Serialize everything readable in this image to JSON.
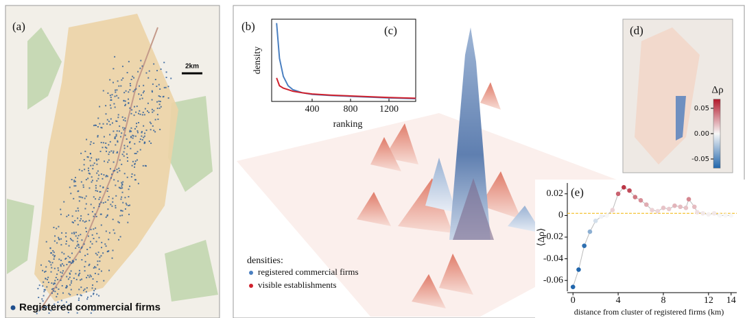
{
  "panel_a": {
    "label": "(a)",
    "scale_label": "2km",
    "legend": "Registered commercial firms"
  },
  "panel_b": {
    "label": "(b)",
    "legend_title": "densities:"
  },
  "panel_d": {
    "label": "(d)"
  },
  "chart_data": [
    {
      "type": "line",
      "label": "(c)",
      "xlabel": "ranking",
      "ylabel": "density",
      "x": [
        30,
        60,
        100,
        150,
        200,
        300,
        400,
        600,
        800,
        1000,
        1200,
        1480
      ],
      "series": [
        {
          "name": "registered commercial firms",
          "color": "#4a7fc0",
          "values": [
            1.0,
            0.55,
            0.32,
            0.2,
            0.15,
            0.11,
            0.09,
            0.075,
            0.065,
            0.055,
            0.045,
            0.035
          ]
        },
        {
          "name": "visible establishments",
          "color": "#d0212d",
          "values": [
            0.3,
            0.2,
            0.17,
            0.15,
            0.13,
            0.11,
            0.095,
            0.08,
            0.07,
            0.06,
            0.05,
            0.04
          ]
        }
      ],
      "xlim": [
        0,
        1475
      ],
      "ylim": [
        0,
        1.05
      ],
      "xticks": [
        400,
        800,
        1200
      ]
    },
    {
      "type": "colorbar",
      "title": "Δρ",
      "colormap": [
        "#2166ac",
        "#f7f7f7",
        "#b2182b"
      ],
      "ylim": [
        -0.068,
        0.068
      ],
      "yticks": [
        0.05,
        {
          "value": 0,
          "label": "0.00"
        },
        -0.05
      ]
    },
    {
      "type": "scatter",
      "label": "(e)",
      "xlabel": "distance from cluster of registered firms (km)",
      "ylabel": "⟨Δρ⟩",
      "x": [
        0,
        0.5,
        1,
        1.5,
        2,
        2.5,
        3,
        3.5,
        4,
        4.5,
        5,
        5.5,
        6,
        6.5,
        7,
        7.5,
        8,
        8.5,
        9,
        9.5,
        10,
        10.25,
        10.75,
        11,
        11.5,
        12,
        12.5,
        13,
        13.5,
        14
      ],
      "values": [
        -0.066,
        -0.05,
        -0.028,
        -0.015,
        -0.005,
        -0.001,
        0,
        0.005,
        0.02,
        0.026,
        0.023,
        0.017,
        0.014,
        0.01,
        0.005,
        0.004,
        0.007,
        0.006,
        0.009,
        0.008,
        0.007,
        0.015,
        0.008,
        0.003,
        0.002,
        0.001,
        0.002,
        0,
        0,
        0
      ],
      "hline": {
        "value": 0.002,
        "color": "#f0b400"
      },
      "xlim": [
        -0.5,
        14.5
      ],
      "ylim": [
        -0.07,
        0.03
      ],
      "xticks": [
        0,
        4,
        8,
        12,
        14
      ],
      "yticks": [
        0.02,
        0,
        -0.02,
        -0.04,
        -0.06
      ]
    }
  ]
}
